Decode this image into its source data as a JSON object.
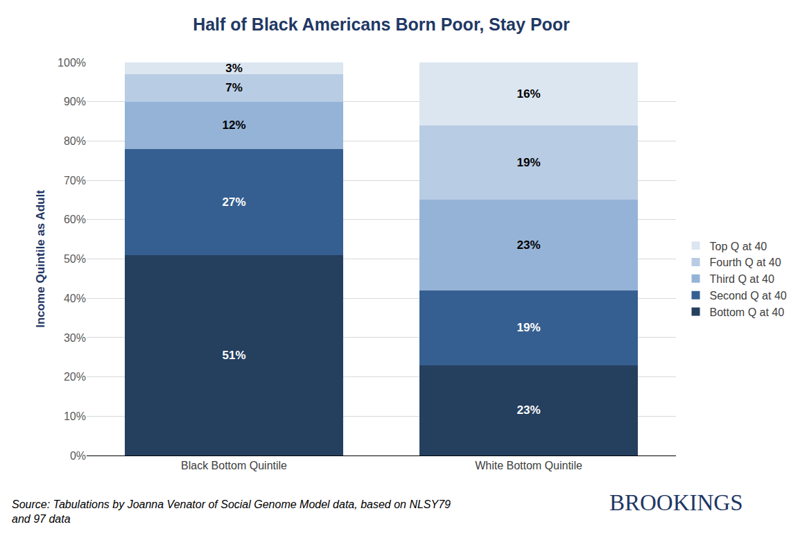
{
  "chart_data": {
    "type": "bar",
    "title": "Half of Black Americans Born Poor, Stay Poor",
    "y_label": "Income Quintile as Adult",
    "categories": [
      "Black Bottom Quintile",
      "White Bottom Quintile"
    ],
    "series": [
      {
        "name": "Bottom Q at 40",
        "color": "#253f5f",
        "values": [
          51,
          23
        ],
        "value_labels": [
          "51%",
          "23%"
        ]
      },
      {
        "name": "Second Q at 40",
        "color": "#365f91",
        "values": [
          27,
          19
        ],
        "value_labels": [
          "27%",
          "19%"
        ]
      },
      {
        "name": "Third Q at 40",
        "color": "#95b3d7",
        "values": [
          12,
          23
        ],
        "value_labels": [
          "12%",
          "23%"
        ]
      },
      {
        "name": "Fourth Q at 40",
        "color": "#b8cce4",
        "values": [
          7,
          19
        ],
        "value_labels": [
          "7%",
          "19%"
        ]
      },
      {
        "name": "Top Q at 40",
        "color": "#dce6f1",
        "values": [
          3,
          16
        ],
        "value_labels": [
          "3%",
          "16%"
        ]
      }
    ],
    "ylim": [
      0,
      100
    ],
    "yticks": [
      {
        "value": 0,
        "label": "0%"
      },
      {
        "value": 10,
        "label": "10%"
      },
      {
        "value": 20,
        "label": "20%"
      },
      {
        "value": 30,
        "label": "30%"
      },
      {
        "value": 40,
        "label": "40%"
      },
      {
        "value": 50,
        "label": "50%"
      },
      {
        "value": 60,
        "label": "60%"
      },
      {
        "value": 70,
        "label": "70%"
      },
      {
        "value": 80,
        "label": "80%"
      },
      {
        "value": 90,
        "label": "90%"
      },
      {
        "value": 100,
        "label": "100%"
      }
    ],
    "stacked": true,
    "data_labels": true,
    "grid": true,
    "legend": "right",
    "annotations": [
      "Source: Tabulations by Joanna Venator of Social Genome Model data, based on NLSY79 and 97 data",
      "BROOKINGS"
    ]
  }
}
